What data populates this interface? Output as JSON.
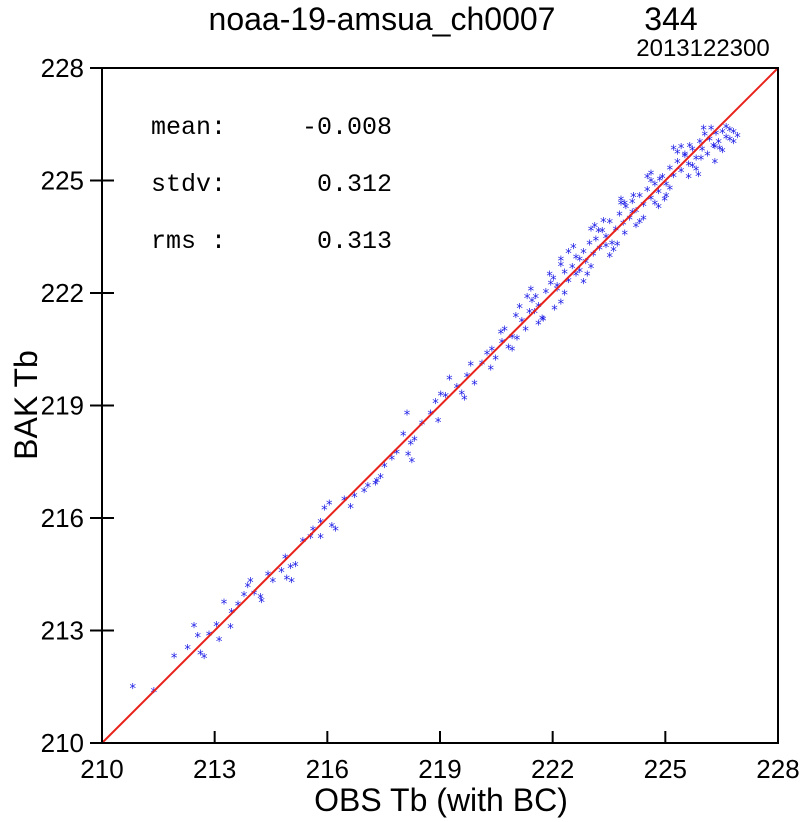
{
  "chart_data": {
    "type": "scatter",
    "title": "noaa-19-amsua_ch0007",
    "count": "344",
    "date": "2013122300",
    "xlabel": "OBS Tb (with BC)",
    "ylabel": "BAK Tb",
    "xlim": [
      210,
      228
    ],
    "ylim": [
      210,
      228
    ],
    "xticks": [
      "210",
      "213",
      "216",
      "219",
      "222",
      "225",
      "228"
    ],
    "yticks": [
      "210",
      "213",
      "216",
      "219",
      "222",
      "225",
      "228"
    ],
    "grid": false,
    "reference_line": {
      "from": [
        210,
        210
      ],
      "to": [
        228,
        228
      ],
      "color": "#e8231c"
    },
    "marker_color": "#1a1ae6",
    "stats": [
      {
        "label": "mean:",
        "value": "-0.008"
      },
      {
        "label": "stdv:",
        "value": "0.312"
      },
      {
        "label": "rms :",
        "value": "0.313"
      }
    ],
    "points": [
      [
        210.82,
        211.52
      ],
      [
        211.38,
        211.42
      ],
      [
        211.92,
        212.34
      ],
      [
        212.28,
        212.56
      ],
      [
        212.45,
        213.15
      ],
      [
        212.55,
        212.88
      ],
      [
        212.72,
        212.32
      ],
      [
        212.85,
        212.92
      ],
      [
        213.05,
        213.18
      ],
      [
        213.12,
        212.78
      ],
      [
        213.25,
        213.78
      ],
      [
        213.45,
        213.52
      ],
      [
        213.78,
        213.98
      ],
      [
        213.88,
        214.22
      ],
      [
        213.95,
        214.35
      ],
      [
        214.05,
        214.02
      ],
      [
        214.25,
        213.82
      ],
      [
        214.55,
        214.35
      ],
      [
        214.78,
        214.62
      ],
      [
        214.88,
        214.98
      ],
      [
        214.92,
        214.42
      ],
      [
        215.05,
        214.35
      ],
      [
        215.15,
        214.78
      ],
      [
        215.35,
        215.42
      ],
      [
        215.55,
        215.52
      ],
      [
        215.82,
        215.92
      ],
      [
        215.92,
        216.28
      ],
      [
        216.05,
        216.42
      ],
      [
        216.12,
        215.82
      ],
      [
        216.22,
        215.72
      ],
      [
        216.45,
        216.52
      ],
      [
        216.98,
        216.75
      ],
      [
        217.08,
        216.88
      ],
      [
        217.28,
        216.95
      ],
      [
        217.32,
        217.02
      ],
      [
        217.72,
        217.62
      ],
      [
        217.85,
        217.78
      ],
      [
        218.02,
        218.25
      ],
      [
        218.12,
        218.82
      ],
      [
        218.15,
        217.72
      ],
      [
        218.25,
        217.55
      ],
      [
        218.32,
        218.12
      ],
      [
        218.52,
        218.55
      ],
      [
        218.75,
        218.82
      ],
      [
        218.88,
        219.12
      ],
      [
        219.15,
        219.28
      ],
      [
        219.25,
        219.75
      ],
      [
        219.45,
        219.52
      ],
      [
        219.58,
        219.35
      ],
      [
        219.72,
        219.82
      ],
      [
        219.92,
        219.62
      ],
      [
        220.12,
        220.15
      ],
      [
        220.25,
        220.42
      ],
      [
        220.38,
        220.52
      ],
      [
        220.48,
        220.28
      ],
      [
        220.65,
        220.72
      ],
      [
        220.72,
        221.05
      ],
      [
        220.82,
        220.58
      ],
      [
        220.92,
        220.85
      ],
      [
        221.02,
        221.42
      ],
      [
        221.12,
        221.65
      ],
      [
        221.18,
        221.28
      ],
      [
        221.28,
        221.05
      ],
      [
        221.38,
        221.52
      ],
      [
        221.45,
        221.82
      ],
      [
        221.55,
        221.92
      ],
      [
        221.62,
        221.68
      ],
      [
        221.72,
        221.35
      ],
      [
        221.82,
        222.05
      ],
      [
        221.95,
        222.28
      ],
      [
        222.02,
        222.42
      ],
      [
        222.12,
        222.12
      ],
      [
        222.22,
        221.78
      ],
      [
        222.32,
        222.58
      ],
      [
        222.42,
        222.35
      ],
      [
        222.52,
        222.72
      ],
      [
        222.62,
        222.52
      ],
      [
        222.72,
        222.92
      ],
      [
        222.82,
        223.12
      ],
      [
        222.88,
        222.85
      ],
      [
        222.98,
        223.35
      ],
      [
        223.08,
        223.05
      ],
      [
        223.15,
        223.45
      ],
      [
        223.25,
        223.22
      ],
      [
        223.32,
        223.68
      ],
      [
        223.42,
        223.52
      ],
      [
        223.52,
        223.92
      ],
      [
        223.58,
        223.35
      ],
      [
        223.68,
        223.72
      ],
      [
        223.78,
        224.12
      ],
      [
        223.88,
        223.88
      ],
      [
        223.95,
        224.32
      ],
      [
        224.05,
        224.02
      ],
      [
        224.12,
        224.45
      ],
      [
        224.22,
        224.22
      ],
      [
        224.32,
        224.62
      ],
      [
        224.42,
        224.38
      ],
      [
        224.52,
        224.78
      ],
      [
        224.62,
        224.55
      ],
      [
        224.72,
        224.92
      ],
      [
        224.82,
        224.72
      ],
      [
        224.92,
        225.12
      ],
      [
        225.02,
        224.92
      ],
      [
        225.12,
        225.35
      ],
      [
        225.22,
        225.15
      ],
      [
        225.32,
        225.52
      ],
      [
        225.42,
        225.28
      ],
      [
        225.52,
        225.68
      ],
      [
        225.62,
        225.45
      ],
      [
        225.72,
        225.85
      ],
      [
        225.82,
        225.62
      ],
      [
        225.92,
        226.05
      ],
      [
        225.98,
        225.85
      ],
      [
        226.05,
        226.25
      ],
      [
        226.12,
        225.72
      ],
      [
        226.18,
        226.12
      ],
      [
        226.28,
        225.95
      ],
      [
        226.35,
        226.28
      ],
      [
        226.42,
        226.05
      ],
      [
        226.52,
        226.32
      ],
      [
        226.62,
        226.18
      ],
      [
        226.72,
        226.38
      ],
      [
        226.82,
        226.05
      ],
      [
        226.32,
        225.52
      ],
      [
        225.82,
        225.32
      ],
      [
        225.12,
        224.82
      ],
      [
        224.42,
        224.02
      ],
      [
        223.72,
        223.32
      ],
      [
        223.02,
        222.72
      ],
      [
        222.32,
        222.02
      ],
      [
        221.62,
        221.22
      ],
      [
        220.92,
        220.52
      ],
      [
        222.62,
        222.98
      ],
      [
        223.22,
        223.68
      ],
      [
        223.92,
        224.42
      ],
      [
        224.62,
        225.02
      ],
      [
        225.32,
        225.78
      ],
      [
        226.02,
        226.42
      ],
      [
        222.92,
        222.52
      ],
      [
        223.62,
        223.18
      ],
      [
        224.32,
        223.92
      ],
      [
        225.02,
        224.62
      ],
      [
        225.72,
        225.42
      ],
      [
        224.12,
        224.18
      ],
      [
        224.72,
        224.42
      ],
      [
        223.42,
        223.28
      ],
      [
        222.72,
        222.62
      ],
      [
        222.12,
        222.22
      ],
      [
        221.52,
        221.52
      ],
      [
        225.52,
        225.72
      ],
      [
        226.22,
        226.42
      ],
      [
        226.52,
        225.82
      ],
      [
        225.88,
        225.18
      ],
      [
        224.98,
        224.52
      ],
      [
        224.22,
        223.82
      ],
      [
        223.52,
        223.02
      ],
      [
        222.82,
        222.32
      ],
      [
        222.42,
        223.12
      ],
      [
        223.12,
        223.82
      ],
      [
        223.82,
        224.42
      ],
      [
        224.52,
        225.12
      ],
      [
        225.22,
        225.88
      ],
      [
        222.22,
        222.78
      ],
      [
        221.92,
        222.52
      ],
      [
        221.32,
        221.92
      ],
      [
        220.62,
        220.98
      ],
      [
        219.82,
        220.12
      ],
      [
        219.02,
        219.32
      ],
      [
        217.52,
        217.42
      ],
      [
        216.72,
        216.62
      ],
      [
        215.62,
        215.72
      ],
      [
        214.42,
        214.52
      ],
      [
        213.62,
        213.72
      ],
      [
        226.62,
        226.45
      ],
      [
        226.82,
        226.32
      ],
      [
        226.72,
        226.12
      ],
      [
        226.45,
        225.88
      ],
      [
        225.95,
        225.62
      ],
      [
        225.65,
        225.95
      ],
      [
        224.85,
        225.05
      ],
      [
        224.15,
        224.62
      ],
      [
        223.35,
        223.95
      ],
      [
        222.55,
        223.25
      ],
      [
        222.05,
        221.62
      ],
      [
        221.75,
        221.32
      ],
      [
        221.05,
        220.82
      ],
      [
        220.35,
        220.02
      ],
      [
        219.65,
        219.22
      ],
      [
        218.95,
        218.62
      ],
      [
        218.22,
        218.02
      ],
      [
        217.42,
        217.12
      ],
      [
        216.62,
        216.32
      ],
      [
        215.82,
        215.52
      ],
      [
        215.02,
        214.72
      ],
      [
        214.22,
        213.92
      ],
      [
        213.42,
        213.12
      ],
      [
        212.62,
        212.42
      ],
      [
        223.92,
        223.62
      ],
      [
        224.82,
        224.32
      ],
      [
        225.62,
        225.12
      ],
      [
        226.32,
        225.92
      ],
      [
        226.92,
        226.22
      ],
      [
        225.42,
        225.92
      ],
      [
        224.62,
        225.22
      ],
      [
        223.82,
        224.52
      ],
      [
        223.02,
        223.72
      ],
      [
        222.22,
        222.92
      ],
      [
        221.42,
        222.12
      ]
    ]
  }
}
